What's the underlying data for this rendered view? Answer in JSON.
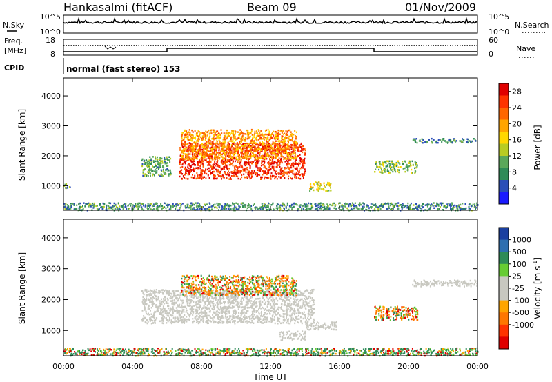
{
  "header": {
    "station": "Hankasalmi (fitACF)",
    "beam": "Beam 09",
    "date": "01/Nov/2009"
  },
  "top_panels": {
    "nsky_label": "N.Sky",
    "nsearch_label": "N.Search",
    "nsky_ticks": [
      "10^5",
      "10^0"
    ],
    "nsearch_ticks": [
      "10^5",
      "10^0"
    ],
    "freq_label_line1": "Freq.",
    "freq_label_line2": "[MHz]",
    "freq_ticks": [
      "18",
      "8"
    ],
    "nave_label": "Nave",
    "nave_ticks": [
      "60",
      "0"
    ],
    "cpid_label": "CPID",
    "cpid_text": "normal (fast stereo) 153"
  },
  "colors": {
    "power": [
      "#1a1aff",
      "#2b4fb8",
      "#2e8b57",
      "#5aa85a",
      "#b8cc22",
      "#ffd700",
      "#ffa500",
      "#ff6600",
      "#ff3300",
      "#e00000"
    ],
    "velocity": [
      "#1a3fa0",
      "#2e6fb0",
      "#2e8b57",
      "#66cc33",
      "#c8c8c0",
      "#c8c8c0",
      "#ffa500",
      "#ff7700",
      "#ff3300",
      "#e00000"
    ],
    "ground": "#c8c8c0"
  },
  "chart_data": [
    {
      "type": "heatmap",
      "panel": "power",
      "xlabel": "",
      "ylabel": "Slant Range [km]",
      "x_ticks": [
        "00:00",
        "04:00",
        "08:00",
        "12:00",
        "16:00",
        "20:00",
        "00:00"
      ],
      "xlim_hours": [
        0,
        24
      ],
      "ylim_km": [
        180,
        4600
      ],
      "y_ticks": [
        1000,
        2000,
        3000,
        4000
      ],
      "colorbar_label": "Power [dB]",
      "colorbar_ticks": [
        4,
        8,
        12,
        16,
        20,
        24,
        28
      ],
      "colorbar_range": [
        0,
        30
      ],
      "regions": [
        {
          "t0": 6.7,
          "t1": 14.0,
          "r0": 1250,
          "r1": 2450,
          "value": 26
        },
        {
          "t0": 6.8,
          "t1": 13.5,
          "r0": 1900,
          "r1": 2900,
          "value": 20
        },
        {
          "t0": 4.5,
          "t1": 6.2,
          "r0": 1350,
          "r1": 2000,
          "value": 10
        },
        {
          "t0": 14.2,
          "t1": 15.5,
          "r0": 850,
          "r1": 1150,
          "value": 16
        },
        {
          "t0": 18.0,
          "t1": 20.5,
          "r0": 1450,
          "r1": 1850,
          "value": 12
        },
        {
          "t0": 20.2,
          "t1": 24.0,
          "r0": 2450,
          "r1": 2600,
          "value": 8
        },
        {
          "t0": 0.0,
          "t1": 0.4,
          "r0": 900,
          "r1": 1100,
          "value": 10
        },
        {
          "t0": 0.0,
          "t1": 24.0,
          "r0": 200,
          "r1": 450,
          "value": 8
        }
      ]
    },
    {
      "type": "heatmap",
      "panel": "velocity",
      "xlabel": "Time UT",
      "ylabel": "Slant Range [km]",
      "x_ticks": [
        "00:00",
        "04:00",
        "08:00",
        "12:00",
        "16:00",
        "20:00",
        "00:00"
      ],
      "xlim_hours": [
        0,
        24
      ],
      "ylim_km": [
        180,
        4600
      ],
      "y_ticks": [
        1000,
        2000,
        3000,
        4000
      ],
      "colorbar_label": "Velocity [m s^-1]",
      "colorbar_ticks": [
        1000,
        500,
        100,
        25,
        -25,
        -100,
        -500,
        -1000
      ],
      "regions": [
        {
          "t0": 4.5,
          "t1": 14.5,
          "r0": 1250,
          "r1": 2350,
          "value": "ground"
        },
        {
          "t0": 6.8,
          "t1": 13.5,
          "r0": 2150,
          "r1": 2800,
          "value": -100
        },
        {
          "t0": 14.0,
          "t1": 15.8,
          "r0": 1050,
          "r1": 1300,
          "value": "ground"
        },
        {
          "t0": 12.5,
          "t1": 14.0,
          "r0": 700,
          "r1": 1000,
          "value": "ground"
        },
        {
          "t0": 18.0,
          "t1": 20.5,
          "r0": 1350,
          "r1": 1800,
          "value": -100
        },
        {
          "t0": 20.2,
          "t1": 24.0,
          "r0": 2450,
          "r1": 2650,
          "value": "ground"
        },
        {
          "t0": 0.0,
          "t1": 24.0,
          "r0": 200,
          "r1": 450,
          "value": 100
        }
      ]
    }
  ]
}
